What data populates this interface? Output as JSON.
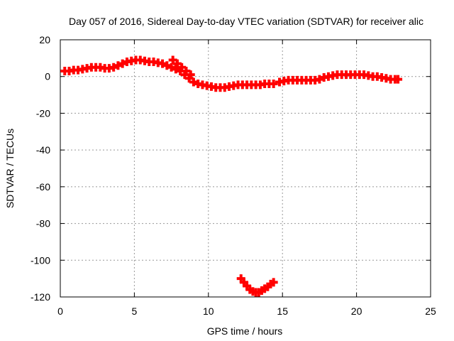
{
  "chart_data": {
    "type": "scatter",
    "title": "Day 057 of 2016, Sidereal Day-to-day VTEC variation (SDTVAR) for receiver alic",
    "xlabel": "GPS time / hours",
    "ylabel": "SDTVAR / TECUs",
    "xlim": [
      0,
      25
    ],
    "ylim": [
      -120,
      20
    ],
    "xticks": [
      "0",
      "5",
      "10",
      "15",
      "20",
      "25"
    ],
    "yticks": [
      "20",
      "0",
      "-20",
      "-40",
      "-60",
      "-80",
      "-100",
      "-120"
    ],
    "grid": true,
    "marker": "+",
    "series_color": "#ff0000",
    "series": [
      {
        "points": [
          [
            0.3,
            3
          ],
          [
            0.6,
            3
          ],
          [
            0.9,
            3.5
          ],
          [
            1.2,
            3.5
          ],
          [
            1.5,
            4
          ],
          [
            1.8,
            4.5
          ],
          [
            2.1,
            5
          ],
          [
            2.4,
            5
          ],
          [
            2.7,
            5
          ],
          [
            3.0,
            4.5
          ],
          [
            3.3,
            4.5
          ],
          [
            3.6,
            5
          ],
          [
            3.9,
            6
          ],
          [
            4.2,
            7
          ],
          [
            4.5,
            8
          ],
          [
            4.8,
            8.5
          ],
          [
            5.1,
            9
          ],
          [
            5.4,
            9
          ],
          [
            5.7,
            8.5
          ],
          [
            6.0,
            8
          ],
          [
            6.3,
            8
          ],
          [
            6.6,
            7.5
          ],
          [
            6.9,
            7
          ],
          [
            7.2,
            6
          ],
          [
            7.5,
            5
          ],
          [
            7.8,
            4
          ],
          [
            8.1,
            3
          ],
          [
            8.4,
            1
          ],
          [
            8.7,
            -1
          ],
          [
            9.0,
            -3
          ],
          [
            9.3,
            -4
          ],
          [
            9.6,
            -4.5
          ],
          [
            9.9,
            -5
          ],
          [
            10.2,
            -5.5
          ],
          [
            10.5,
            -6
          ],
          [
            10.8,
            -6
          ],
          [
            11.1,
            -6
          ],
          [
            11.4,
            -5.5
          ],
          [
            11.7,
            -5
          ],
          [
            12.0,
            -4.5
          ],
          [
            12.3,
            -4.5
          ],
          [
            12.6,
            -4.5
          ],
          [
            12.9,
            -4.5
          ],
          [
            13.2,
            -4.5
          ],
          [
            13.5,
            -4.5
          ],
          [
            13.8,
            -4
          ],
          [
            14.1,
            -4
          ],
          [
            14.4,
            -4
          ],
          [
            7.6,
            9
          ],
          [
            7.9,
            7
          ],
          [
            8.2,
            5
          ],
          [
            8.5,
            3
          ],
          [
            8.8,
            1
          ],
          [
            14.8,
            -3
          ],
          [
            15.1,
            -2.5
          ],
          [
            15.4,
            -2
          ],
          [
            15.7,
            -2
          ],
          [
            16.0,
            -2
          ],
          [
            16.3,
            -2
          ],
          [
            16.6,
            -2
          ],
          [
            16.9,
            -2
          ],
          [
            17.2,
            -2
          ],
          [
            17.5,
            -1.5
          ],
          [
            17.8,
            -0.5
          ],
          [
            18.1,
            0
          ],
          [
            18.4,
            0.5
          ],
          [
            18.7,
            1
          ],
          [
            19.0,
            1
          ],
          [
            19.3,
            1
          ],
          [
            19.6,
            1
          ],
          [
            19.9,
            1
          ],
          [
            20.2,
            1
          ],
          [
            20.5,
            1
          ],
          [
            20.8,
            0.5
          ],
          [
            21.1,
            0
          ],
          [
            21.4,
            0
          ],
          [
            21.7,
            -0.5
          ],
          [
            22.0,
            -1
          ],
          [
            22.3,
            -1.5
          ],
          [
            22.6,
            -1.5
          ],
          [
            22.8,
            -1.5
          ],
          [
            12.2,
            -110
          ],
          [
            12.4,
            -112
          ],
          [
            12.6,
            -114
          ],
          [
            12.8,
            -116
          ],
          [
            13.0,
            -117
          ],
          [
            13.2,
            -117.5
          ],
          [
            13.4,
            -117.5
          ],
          [
            13.6,
            -116.5
          ],
          [
            13.8,
            -115.5
          ],
          [
            14.0,
            -114.5
          ],
          [
            14.2,
            -113
          ],
          [
            14.4,
            -112
          ]
        ]
      }
    ]
  }
}
